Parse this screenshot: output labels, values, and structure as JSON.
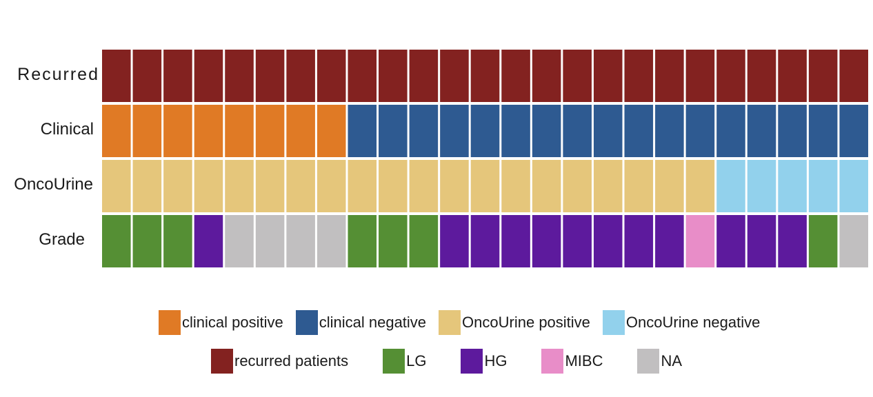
{
  "chart_data": {
    "type": "heatmap",
    "rows": [
      {
        "label": "Recurred",
        "values": [
          "recurred",
          "recurred",
          "recurred",
          "recurred",
          "recurred",
          "recurred",
          "recurred",
          "recurred",
          "recurred",
          "recurred",
          "recurred",
          "recurred",
          "recurred",
          "recurred",
          "recurred",
          "recurred",
          "recurred",
          "recurred",
          "recurred",
          "recurred",
          "recurred",
          "recurred",
          "recurred",
          "recurred",
          "recurred"
        ]
      },
      {
        "label": "Clinical",
        "values": [
          "clinical_pos",
          "clinical_pos",
          "clinical_pos",
          "clinical_pos",
          "clinical_pos",
          "clinical_pos",
          "clinical_pos",
          "clinical_pos",
          "clinical_neg",
          "clinical_neg",
          "clinical_neg",
          "clinical_neg",
          "clinical_neg",
          "clinical_neg",
          "clinical_neg",
          "clinical_neg",
          "clinical_neg",
          "clinical_neg",
          "clinical_neg",
          "clinical_neg",
          "clinical_neg",
          "clinical_neg",
          "clinical_neg",
          "clinical_neg",
          "clinical_neg"
        ]
      },
      {
        "label": "OncoUrine",
        "values": [
          "onco_pos",
          "onco_pos",
          "onco_pos",
          "onco_pos",
          "onco_pos",
          "onco_pos",
          "onco_pos",
          "onco_pos",
          "onco_pos",
          "onco_pos",
          "onco_pos",
          "onco_pos",
          "onco_pos",
          "onco_pos",
          "onco_pos",
          "onco_pos",
          "onco_pos",
          "onco_pos",
          "onco_pos",
          "onco_pos",
          "onco_neg",
          "onco_neg",
          "onco_neg",
          "onco_neg",
          "onco_neg"
        ]
      },
      {
        "label": "Grade",
        "values": [
          "LG",
          "LG",
          "LG",
          "HG",
          "NA",
          "NA",
          "NA",
          "NA",
          "LG",
          "LG",
          "LG",
          "HG",
          "HG",
          "HG",
          "HG",
          "HG",
          "HG",
          "HG",
          "HG",
          "MIBC",
          "HG",
          "HG",
          "HG",
          "LG",
          "NA"
        ]
      }
    ],
    "categories": {
      "recurred": {
        "label": "recurred patients",
        "color": "#832220"
      },
      "clinical_pos": {
        "label": "clinical positive",
        "color": "#E07A25"
      },
      "clinical_neg": {
        "label": "clinical negative",
        "color": "#2E5A91"
      },
      "onco_pos": {
        "label": "OncoUrine positive",
        "color": "#E5C67B"
      },
      "onco_neg": {
        "label": "OncoUrine negative",
        "color": "#92D1EC"
      },
      "LG": {
        "label": "LG",
        "color": "#558F34"
      },
      "HG": {
        "label": "HG",
        "color": "#5D1A9D"
      },
      "MIBC": {
        "label": "MIBC",
        "color": "#E88DC8"
      },
      "NA": {
        "label": "NA",
        "color": "#C1BFC0"
      }
    },
    "legend": [
      [
        "clinical_pos",
        "clinical_neg",
        "onco_pos",
        "onco_neg"
      ],
      [
        "recurred",
        "LG",
        "HG",
        "MIBC",
        "NA"
      ]
    ]
  }
}
